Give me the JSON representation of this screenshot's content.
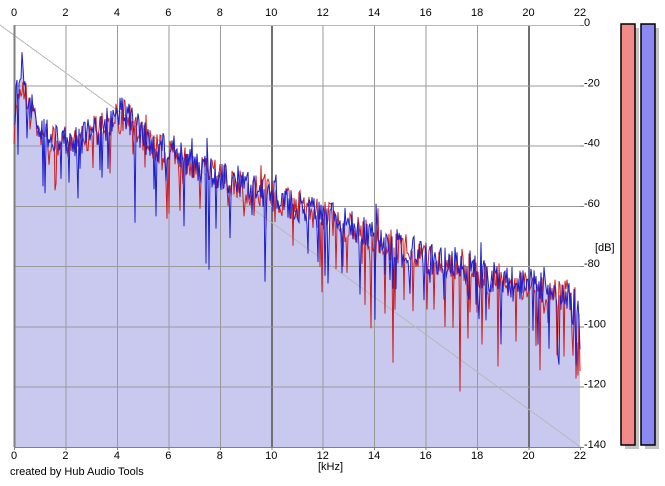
{
  "window": {
    "credit": "created by Hub Audio Tools"
  },
  "chart_data": {
    "type": "area",
    "title": "",
    "xlabel": "[kHz]",
    "ylabel": "[dB]",
    "xlim": [
      0,
      22
    ],
    "ylim": [
      -140,
      0
    ],
    "x_ticks": [
      0,
      2,
      4,
      6,
      8,
      10,
      12,
      14,
      16,
      18,
      20,
      22
    ],
    "y_ticks": [
      0,
      -20,
      -40,
      -60,
      -80,
      -100,
      -120,
      -140
    ],
    "grid": true,
    "major_x_gridlines_khz": [
      10,
      20
    ],
    "legend": "none",
    "series": [
      {
        "name": "channel-1-spectrum",
        "color": "#cc1f1f",
        "seed": 1337,
        "envelope_points_khz_db": [
          [
            0,
            -36
          ],
          [
            0.08,
            -28
          ],
          [
            0.2,
            -21
          ],
          [
            0.3,
            -19
          ],
          [
            0.45,
            -24
          ],
          [
            0.6,
            -27
          ],
          [
            0.8,
            -32
          ],
          [
            1,
            -35
          ],
          [
            1.3,
            -37
          ],
          [
            1.7,
            -38
          ],
          [
            2,
            -39
          ],
          [
            2.4,
            -38
          ],
          [
            2.8,
            -37
          ],
          [
            3.2,
            -35
          ],
          [
            3.6,
            -33
          ],
          [
            4,
            -31
          ],
          [
            4.3,
            -30
          ],
          [
            4.7,
            -34
          ],
          [
            5,
            -38
          ],
          [
            5.5,
            -41
          ],
          [
            6,
            -43
          ],
          [
            6.5,
            -45
          ],
          [
            7,
            -47
          ],
          [
            7.5,
            -49
          ],
          [
            8,
            -51
          ],
          [
            8.7,
            -53
          ],
          [
            9.3,
            -55
          ],
          [
            10,
            -57
          ],
          [
            10.7,
            -59
          ],
          [
            11.3,
            -61
          ],
          [
            12,
            -63
          ],
          [
            12.7,
            -66
          ],
          [
            13.3,
            -68
          ],
          [
            14,
            -70
          ],
          [
            14.7,
            -73
          ],
          [
            15.3,
            -75
          ],
          [
            16,
            -77
          ],
          [
            16.7,
            -79
          ],
          [
            17.3,
            -81
          ],
          [
            18,
            -83
          ],
          [
            18.7,
            -84
          ],
          [
            19.3,
            -86
          ],
          [
            20,
            -87
          ],
          [
            20.7,
            -88
          ],
          [
            21.3,
            -90
          ],
          [
            21.7,
            -91
          ],
          [
            22,
            -95
          ]
        ]
      },
      {
        "name": "channel-2-spectrum",
        "color": "#1f1fcc",
        "fill": "#c9c9f0",
        "seed": 42,
        "envelope_points_khz_db": [
          [
            0,
            -34
          ],
          [
            0.08,
            -24
          ],
          [
            0.2,
            -14
          ],
          [
            0.3,
            -12
          ],
          [
            0.45,
            -20
          ],
          [
            0.6,
            -26
          ],
          [
            0.8,
            -31
          ],
          [
            1,
            -34
          ],
          [
            1.3,
            -37
          ],
          [
            1.7,
            -38
          ],
          [
            2,
            -39
          ],
          [
            2.4,
            -38
          ],
          [
            2.8,
            -37
          ],
          [
            3.2,
            -35
          ],
          [
            3.6,
            -33
          ],
          [
            4,
            -30
          ],
          [
            4.3,
            -29
          ],
          [
            4.7,
            -33
          ],
          [
            5,
            -37
          ],
          [
            5.5,
            -40
          ],
          [
            6,
            -42
          ],
          [
            6.5,
            -44
          ],
          [
            7,
            -46
          ],
          [
            7.5,
            -48
          ],
          [
            8,
            -50
          ],
          [
            8.7,
            -52
          ],
          [
            9.3,
            -54
          ],
          [
            10,
            -57
          ],
          [
            10.7,
            -59
          ],
          [
            11.3,
            -61
          ],
          [
            12,
            -63
          ],
          [
            12.7,
            -65
          ],
          [
            13.3,
            -68
          ],
          [
            14,
            -70
          ],
          [
            14.7,
            -72
          ],
          [
            15.3,
            -74
          ],
          [
            16,
            -77
          ],
          [
            16.7,
            -79
          ],
          [
            17.3,
            -80
          ],
          [
            18,
            -82
          ],
          [
            18.7,
            -84
          ],
          [
            19.3,
            -85
          ],
          [
            20,
            -86
          ],
          [
            20.7,
            -88
          ],
          [
            21.3,
            -89
          ],
          [
            21.7,
            -90
          ],
          [
            22,
            -94
          ]
        ]
      }
    ],
    "noise_model": {
      "jitter_db": 11,
      "dip_chance": 0.1,
      "dip_db": [
        5,
        21
      ],
      "deep_dip_chance": 0.015,
      "deep_dip_db": [
        18,
        38
      ],
      "rise_chance": 0.05,
      "rise_db": [
        2,
        6
      ],
      "end_dip_above_khz": 21.5,
      "end_dip_chance": 0.18,
      "end_dip_db": [
        8,
        24
      ]
    }
  },
  "level_meters": {
    "bars": [
      {
        "name": "left-level-bar",
        "color": "#f28a8a"
      },
      {
        "name": "right-level-bar",
        "color": "#8a8af2"
      }
    ],
    "shadow_color": "#c2c2c2",
    "border_color": "#000000"
  },
  "colors": {
    "background": "#ffffff",
    "grid": "#9a9a9a",
    "grid_major": "#6f6f6f",
    "axis": "#808080",
    "axis_light": "#b8b8b8",
    "text": "#000000"
  }
}
